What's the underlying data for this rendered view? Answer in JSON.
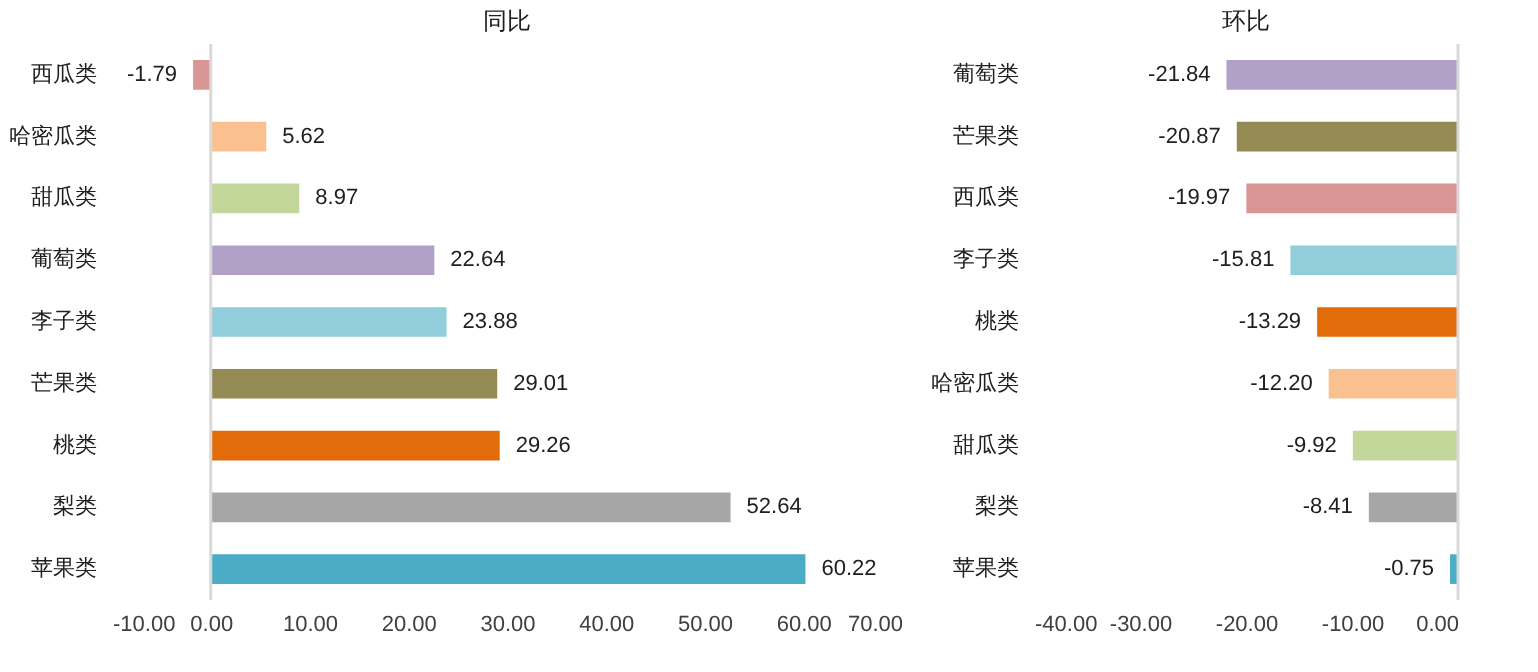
{
  "chart_data": [
    {
      "type": "bar",
      "orientation": "horizontal",
      "title": "同比",
      "grid": false,
      "value_labels": [
        "-1.79",
        "5.62",
        "8.97",
        "22.64",
        "23.88",
        "29.01",
        "29.26",
        "52.64",
        "60.22"
      ],
      "categories": [
        "西瓜类",
        "哈密瓜类",
        "甜瓜类",
        "葡萄类",
        "李子类",
        "芒果类",
        "桃类",
        "梨类",
        "苹果类"
      ],
      "values": [
        -1.79,
        5.62,
        8.97,
        22.64,
        23.88,
        29.01,
        29.26,
        52.64,
        60.22
      ],
      "colors": [
        "#da9694",
        "#fac090",
        "#c4d79b",
        "#b1a0c7",
        "#92cddc",
        "#948a54",
        "#e26b0a",
        "#a6a6a6",
        "#4bacc6"
      ],
      "xlim": [
        -10,
        70
      ],
      "xticks": [
        {
          "value": -10,
          "label": "-10.00"
        },
        {
          "value": 0,
          "label": "0.00"
        },
        {
          "value": 10,
          "label": "10.00"
        },
        {
          "value": 20,
          "label": "20.00"
        },
        {
          "value": 30,
          "label": "30.00"
        },
        {
          "value": 40,
          "label": "40.00"
        },
        {
          "value": 50,
          "label": "50.00"
        },
        {
          "value": 60,
          "label": "60.00"
        },
        {
          "value": 70,
          "label": "70.00"
        }
      ],
      "ref_lines": [
        {
          "axis": "x",
          "value": 0,
          "color": "#d9d9d9"
        }
      ]
    },
    {
      "type": "bar",
      "orientation": "horizontal",
      "title": "环比",
      "grid": false,
      "value_labels": [
        "-21.84",
        "-20.87",
        "-19.97",
        "-15.81",
        "-13.29",
        "-12.20",
        "-9.92",
        "-8.41",
        "-0.75"
      ],
      "categories": [
        "葡萄类",
        "芒果类",
        "西瓜类",
        "李子类",
        "桃类",
        "哈密瓜类",
        "甜瓜类",
        "梨类",
        "苹果类"
      ],
      "values": [
        -21.84,
        -20.87,
        -19.97,
        -15.81,
        -13.29,
        -12.2,
        -9.92,
        -8.41,
        -0.75
      ],
      "colors": [
        "#b1a0c7",
        "#948a54",
        "#da9694",
        "#92cddc",
        "#e26b0a",
        "#fac090",
        "#c4d79b",
        "#a6a6a6",
        "#4bacc6"
      ],
      "xlim": [
        -40,
        0
      ],
      "xticks": [
        {
          "value": -40,
          "label": "-40.00"
        },
        {
          "value": -30,
          "label": "-30.00"
        },
        {
          "value": -20,
          "label": "-20.00"
        },
        {
          "value": -10,
          "label": "-10.00"
        },
        {
          "value": 0,
          "label": "0.00"
        }
      ],
      "ref_lines": [
        {
          "axis": "x",
          "value": 0,
          "color": "#d9d9d9"
        }
      ]
    }
  ]
}
